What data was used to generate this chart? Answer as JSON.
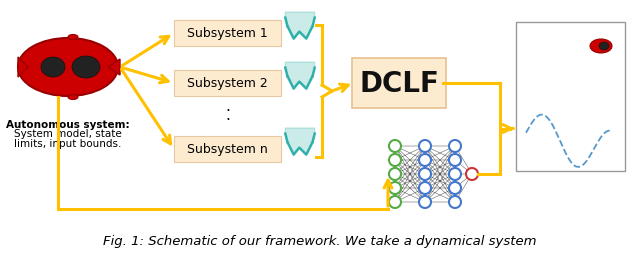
{
  "caption": "Fig. 1: Schematic of our framework. We take a dynamical system",
  "bg_color": "#ffffff",
  "arrow_color": "#FFC000",
  "dclf_box_color": "#FDEBD0",
  "dclf_text": "DCLF",
  "subsystems": [
    "Subsystem 1",
    "Subsystem 2",
    "Subsystem n"
  ],
  "auto_text_lines": [
    "Autonomous system:",
    "System model, state",
    "limits, input bounds."
  ],
  "auto_text_fontsize": 7.5,
  "subsystem_fontsize": 9,
  "dclf_fontsize": 20,
  "caption_fontsize": 9.5,
  "sub_box_color": "#FDEBD0",
  "sub_box_edge": "#E8C8A0",
  "car_body_color": "#CC0000",
  "car_edge_color": "#990000",
  "car_window_color": "#1a1a1a",
  "nn_green": "#55AA44",
  "nn_blue": "#4477CC",
  "nn_red": "#CC3333"
}
